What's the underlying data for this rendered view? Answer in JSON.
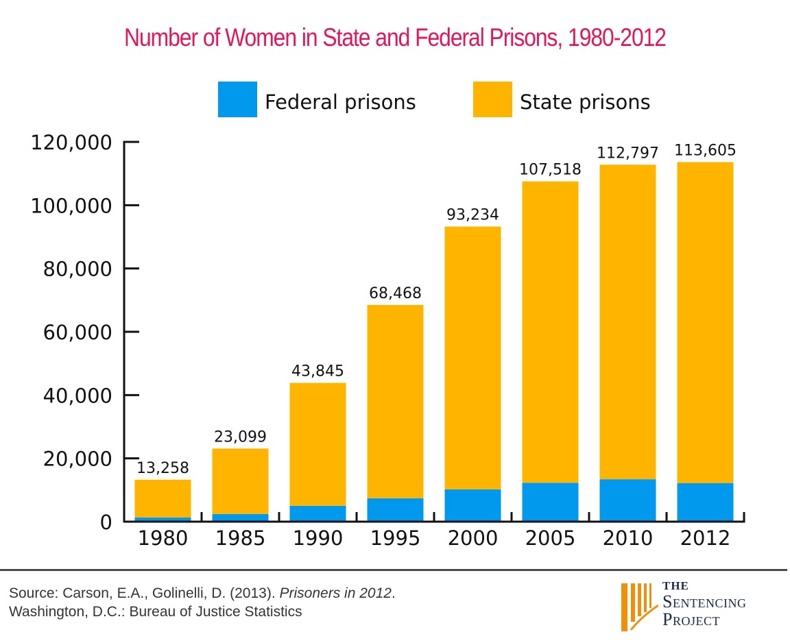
{
  "chart_data": {
    "type": "bar",
    "stacked": true,
    "title": "Number of Women in State and Federal Prisons, 1980-2012",
    "xlabel": "",
    "ylabel": "",
    "categories": [
      "1980",
      "1985",
      "1990",
      "1995",
      "2000",
      "2005",
      "2010",
      "2012"
    ],
    "series": [
      {
        "name": "Federal prisons",
        "color": "#0099ee",
        "values": [
          1300,
          2400,
          5000,
          7400,
          10200,
          12300,
          13400,
          12200
        ]
      },
      {
        "name": "State prisons",
        "color": "#ffb400",
        "values": [
          11958,
          20699,
          38845,
          61068,
          83034,
          95218,
          99397,
          101405
        ]
      }
    ],
    "totals": [
      13258,
      23099,
      43845,
      68468,
      93234,
      107518,
      112797,
      113605
    ],
    "total_labels": [
      "13,258",
      "23,099",
      "43,845",
      "68,468",
      "93,234",
      "107,518",
      "112,797",
      "113,605"
    ],
    "ylim": [
      0,
      120000
    ],
    "yticks": [
      0,
      20000,
      40000,
      60000,
      80000,
      100000,
      120000
    ],
    "ytick_labels": [
      "0",
      "20,000",
      "40,000",
      "60,000",
      "80,000",
      "100,000",
      "120,000"
    ],
    "grid": false,
    "legend_position": "top-center"
  },
  "legend": [
    {
      "label": "Federal prisons",
      "color": "#0099ee"
    },
    {
      "label": "State prisons",
      "color": "#ffb400"
    }
  ],
  "source": {
    "prefix": "Source: Carson, E.A., Golinelli, D. (2013). ",
    "italic": "Prisoners in 2012",
    "suffix": ".",
    "line2": "Washington, D.C.: Bureau of Justice Statistics"
  },
  "logo": {
    "line1": "THE",
    "line2": "Sentencing",
    "line3": "Project",
    "icon": "pillars-icon",
    "color": "#f0900a"
  }
}
